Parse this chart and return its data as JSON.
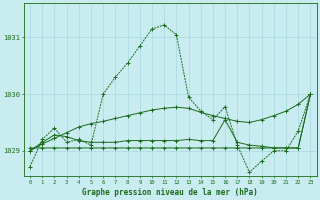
{
  "title": "Graphe pression niveau de la mer (hPa)",
  "bg_color": "#c8ecf0",
  "grid_color": "#a8d8e0",
  "line_color": "#1a6b1a",
  "x_labels": [
    "0",
    "1",
    "2",
    "3",
    "4",
    "5",
    "6",
    "7",
    "8",
    "9",
    "10",
    "11",
    "12",
    "13",
    "14",
    "15",
    "16",
    "17",
    "18",
    "19",
    "20",
    "21",
    "22",
    "23"
  ],
  "ylim": [
    1028.55,
    1031.6
  ],
  "yticks": [
    1029,
    1030,
    1031
  ],
  "series1": [
    1028.72,
    1029.2,
    1029.4,
    1029.15,
    1029.2,
    1029.1,
    1030.0,
    1030.3,
    1030.55,
    1030.85,
    1031.15,
    1031.22,
    1031.05,
    1029.95,
    1029.7,
    1029.55,
    1029.78,
    1029.1,
    1028.62,
    1028.82,
    1029.0,
    1029.0,
    1029.35,
    1030.0
  ],
  "series2": [
    1029.0,
    1029.15,
    1029.28,
    1029.25,
    1029.18,
    1029.15,
    1029.15,
    1029.15,
    1029.18,
    1029.18,
    1029.18,
    1029.18,
    1029.18,
    1029.2,
    1029.18,
    1029.18,
    1029.55,
    1029.15,
    1029.1,
    1029.08,
    1029.05,
    1029.05,
    1029.05,
    1030.0
  ],
  "series3": [
    1029.05,
    1029.05,
    1029.05,
    1029.05,
    1029.05,
    1029.05,
    1029.05,
    1029.05,
    1029.05,
    1029.05,
    1029.05,
    1029.05,
    1029.05,
    1029.05,
    1029.05,
    1029.05,
    1029.05,
    1029.05,
    1029.05,
    1029.05,
    1029.05,
    1029.05,
    1029.05,
    1030.0
  ],
  "series4": [
    1029.0,
    1029.12,
    1029.22,
    1029.32,
    1029.42,
    1029.48,
    1029.52,
    1029.57,
    1029.62,
    1029.67,
    1029.72,
    1029.75,
    1029.77,
    1029.75,
    1029.68,
    1029.62,
    1029.57,
    1029.52,
    1029.5,
    1029.55,
    1029.62,
    1029.7,
    1029.82,
    1030.0
  ]
}
